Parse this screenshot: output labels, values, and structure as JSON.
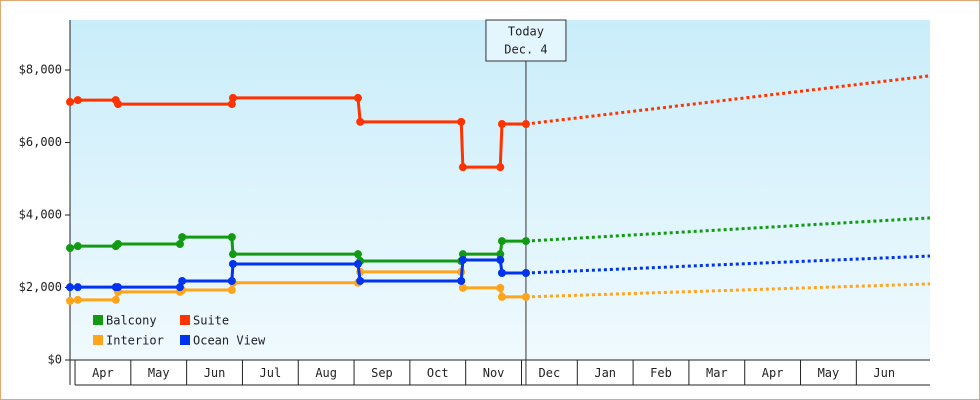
{
  "chart_data": {
    "type": "line",
    "step_markers": true,
    "xlim": [
      -0.09,
      15.32
    ],
    "ylim": [
      0,
      9380
    ],
    "xticks": [
      {
        "value": 0,
        "label": "Apr"
      },
      {
        "value": 1,
        "label": "May"
      },
      {
        "value": 2,
        "label": "Jun"
      },
      {
        "value": 3,
        "label": "Jul"
      },
      {
        "value": 4,
        "label": "Aug"
      },
      {
        "value": 5,
        "label": "Sep"
      },
      {
        "value": 6,
        "label": "Oct"
      },
      {
        "value": 7,
        "label": "Nov"
      },
      {
        "value": 8,
        "label": "Dec"
      },
      {
        "value": 9,
        "label": "Jan"
      },
      {
        "value": 10,
        "label": "Feb"
      },
      {
        "value": 11,
        "label": "Mar"
      },
      {
        "value": 12,
        "label": "Apr"
      },
      {
        "value": 13,
        "label": "May"
      },
      {
        "value": 14,
        "label": "Jun"
      }
    ],
    "yticks": [
      {
        "value": 0,
        "label": "$0"
      },
      {
        "value": 2000,
        "label": "$2,000"
      },
      {
        "value": 4000,
        "label": "$4,000"
      },
      {
        "value": 6000,
        "label": "$6,000"
      },
      {
        "value": 8000,
        "label": "$8,000"
      }
    ],
    "annotation": {
      "x": 8.08,
      "lines": [
        "Today",
        "Dec. 4"
      ]
    },
    "legend": "lower left",
    "series": [
      {
        "name": "Balcony",
        "color": "#139a13",
        "x": [
          -0.09,
          0.05,
          0.73,
          0.77,
          1.88,
          1.92,
          2.81,
          2.83,
          5.07,
          5.11,
          6.92,
          6.95,
          7.62,
          7.65,
          8.08
        ],
        "values": [
          3090,
          3140,
          3140,
          3200,
          3200,
          3390,
          3390,
          2920,
          2920,
          2730,
          2730,
          2920,
          2920,
          3280,
          3280
        ],
        "forecast_x": [
          8.08,
          15.32
        ],
        "forecast_values": [
          3280,
          3920
        ]
      },
      {
        "name": "Suite",
        "color": "#ff3300",
        "x": [
          -0.09,
          0.05,
          0.73,
          0.77,
          2.81,
          2.83,
          5.07,
          5.11,
          6.92,
          6.95,
          7.62,
          7.65,
          8.08
        ],
        "values": [
          7120,
          7170,
          7170,
          7060,
          7060,
          7230,
          7230,
          6570,
          6570,
          5320,
          5320,
          6510,
          6510
        ],
        "forecast_x": [
          8.08,
          15.32
        ],
        "forecast_values": [
          6510,
          7840
        ]
      },
      {
        "name": "Interior",
        "color": "#ffa41b",
        "x": [
          -0.09,
          0.05,
          0.73,
          0.77,
          1.88,
          1.92,
          2.81,
          2.83,
          5.07,
          5.11,
          6.92,
          6.95,
          7.62,
          7.65,
          8.08
        ],
        "values": [
          1630,
          1660,
          1660,
          1880,
          1880,
          1930,
          1930,
          2130,
          2130,
          2430,
          2430,
          1990,
          1990,
          1740,
          1740
        ],
        "forecast_x": [
          8.08,
          15.32
        ],
        "forecast_values": [
          1740,
          2100
        ]
      },
      {
        "name": "Ocean View",
        "color": "#0033ee",
        "x": [
          -0.09,
          0.05,
          0.73,
          0.77,
          1.88,
          1.92,
          2.81,
          2.83,
          5.07,
          5.11,
          6.92,
          6.95,
          7.62,
          7.65,
          8.08
        ],
        "values": [
          2010,
          2010,
          2010,
          2010,
          2010,
          2180,
          2180,
          2650,
          2650,
          2180,
          2180,
          2760,
          2760,
          2400,
          2400
        ],
        "forecast_x": [
          8.08,
          15.32
        ],
        "forecast_values": [
          2400,
          2870
        ]
      }
    ]
  }
}
